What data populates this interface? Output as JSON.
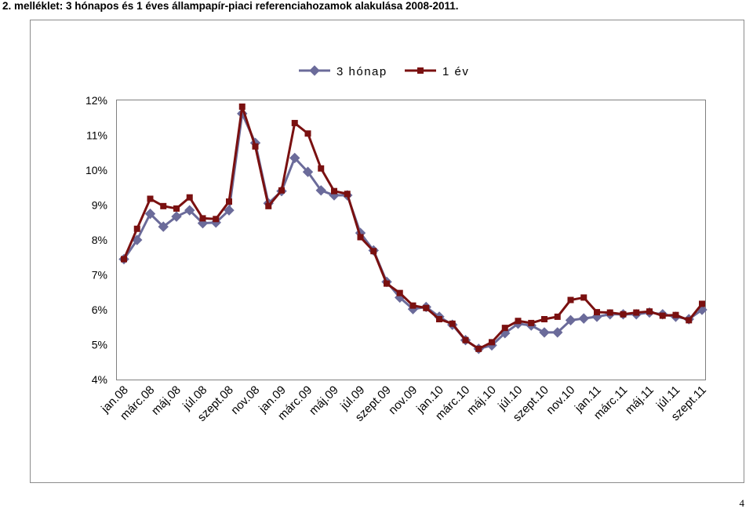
{
  "page": {
    "title": "2. melléklet: 3 hónapos és 1 éves állampapír-piaci referenciahozamok alakulása 2008-2011.",
    "page_number": "4"
  },
  "chart_data": {
    "type": "line",
    "title": "",
    "xlabel": "",
    "ylabel": "",
    "ylim": [
      4,
      12
    ],
    "y_ticks": [
      4,
      5,
      6,
      7,
      8,
      9,
      10,
      11,
      12
    ],
    "y_tick_labels": [
      "4%",
      "5%",
      "6%",
      "7%",
      "8%",
      "9%",
      "10%",
      "11%",
      "12%"
    ],
    "grid": false,
    "legend_position": "top-center",
    "categories": [
      "jan.08",
      "febr.08",
      "márc.08",
      "ápr.08",
      "máj.08",
      "jún.08",
      "júl.08",
      "aug.08",
      "szept.08",
      "okt.08",
      "nov.08",
      "dec.08",
      "jan.09",
      "febr.09",
      "márc.09",
      "ápr.09",
      "máj.09",
      "jún.09",
      "júl.09",
      "aug.09",
      "szept.09",
      "okt.09",
      "nov.09",
      "dec.09",
      "jan.10",
      "febr.10",
      "márc.10",
      "ápr.10",
      "máj.10",
      "jún.10",
      "júl.10",
      "aug.10",
      "szept.10",
      "okt.10",
      "nov.10",
      "dec.10",
      "jan.11",
      "febr.11",
      "márc.11",
      "ápr.11",
      "máj.11",
      "jún.11",
      "júl.11",
      "aug.11",
      "szept.11"
    ],
    "tick_labels": [
      "jan.08",
      "",
      "márc.08",
      "",
      "máj.08",
      "",
      "júl.08",
      "",
      "szept.08",
      "",
      "nov.08",
      "",
      "jan.09",
      "",
      "márc.09",
      "",
      "máj.09",
      "",
      "júl.09",
      "",
      "szept.09",
      "",
      "nov.09",
      "",
      "jan.10",
      "",
      "márc.10",
      "",
      "máj.10",
      "",
      "júl.10",
      "",
      "szept.10",
      "",
      "nov.10",
      "",
      "jan.11",
      "",
      "márc.11",
      "",
      "máj.11",
      "",
      "júl.11",
      "",
      "szept.11"
    ],
    "series": [
      {
        "name": "3 hónap",
        "color": "#6b6b9a",
        "marker": "diamond",
        "values": [
          7.45,
          8.0,
          8.75,
          8.38,
          8.67,
          8.85,
          8.48,
          8.5,
          8.85,
          11.62,
          10.78,
          9.05,
          9.4,
          10.35,
          9.95,
          9.42,
          9.28,
          9.28,
          8.2,
          7.7,
          6.8,
          6.35,
          6.02,
          6.08,
          5.8,
          5.57,
          5.13,
          4.88,
          4.98,
          5.33,
          5.6,
          5.55,
          5.35,
          5.35,
          5.7,
          5.75,
          5.8,
          5.87,
          5.87,
          5.87,
          5.92,
          5.87,
          5.8,
          5.73,
          6.0
        ]
      },
      {
        "name": "1 év",
        "color": "#7a1010",
        "marker": "square",
        "values": [
          7.45,
          8.32,
          9.18,
          8.97,
          8.9,
          9.22,
          8.62,
          8.6,
          9.1,
          11.82,
          10.68,
          8.97,
          9.42,
          11.35,
          11.05,
          10.05,
          9.4,
          9.32,
          8.08,
          7.68,
          6.75,
          6.48,
          6.12,
          6.05,
          5.73,
          5.6,
          5.13,
          4.88,
          5.07,
          5.48,
          5.68,
          5.62,
          5.73,
          5.8,
          6.28,
          6.35,
          5.93,
          5.92,
          5.87,
          5.92,
          5.95,
          5.83,
          5.85,
          5.7,
          6.17
        ]
      }
    ]
  }
}
